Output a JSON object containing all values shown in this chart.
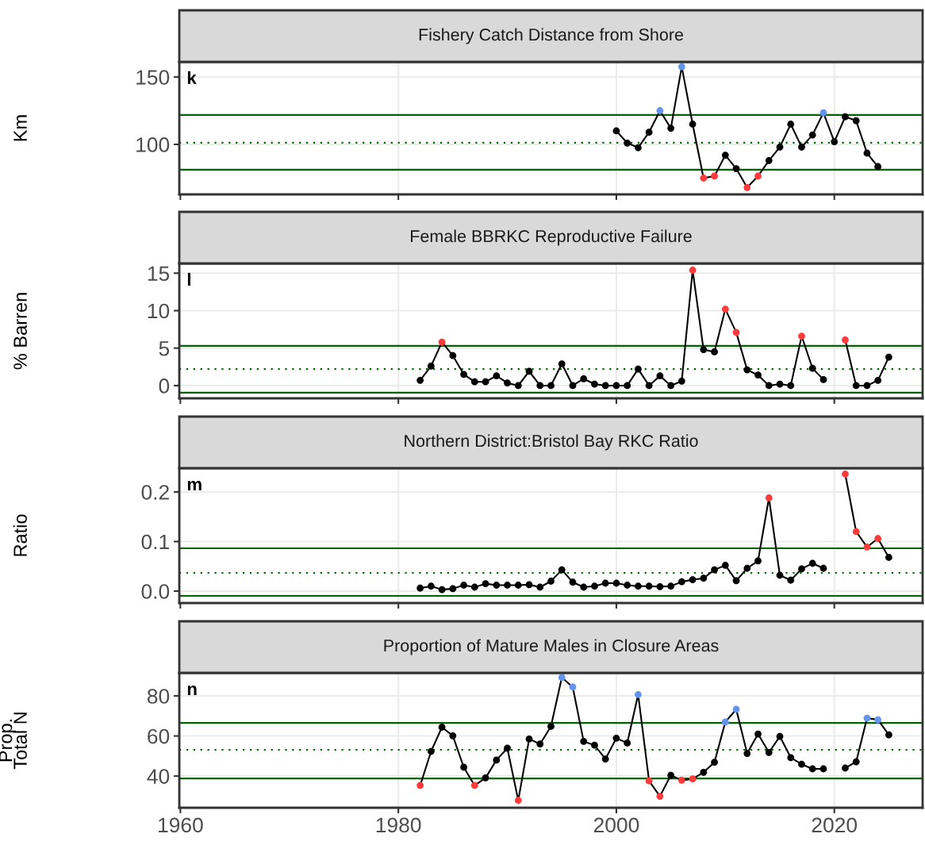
{
  "chart_data": [
    {
      "type": "line",
      "title": "Fishery Catch Distance from Shore",
      "ylabel": "Km",
      "annotations": [
        "k"
      ],
      "tick_labels": "y",
      "grid": true,
      "marker": "circle",
      "line_style": "solid",
      "xlim": [
        1959.9,
        2028.1
      ],
      "xticks": [
        1960,
        1980,
        2000,
        2020
      ],
      "ylim": [
        62.9,
        161.2
      ],
      "yticks": [
        100,
        150
      ],
      "x": [
        2000,
        2001,
        2002,
        2003,
        2004,
        2005,
        2006,
        2007,
        2008,
        2009,
        2010,
        2011,
        2012,
        2013,
        2014,
        2015,
        2016,
        2017,
        2018,
        2019,
        2020,
        2021,
        2022,
        2023,
        2024
      ],
      "series": [
        {
          "color": "#000000",
          "values": [
            110,
            101,
            97.6,
            109,
            125,
            112,
            157.6,
            115,
            75,
            76.5,
            92,
            82,
            68,
            76.5,
            88,
            98,
            115,
            98,
            107,
            123.5,
            102,
            120.5,
            117.6,
            93.5,
            83.5
          ],
          "colors": [
            "#000000",
            "#000000",
            "#000000",
            "#000000",
            "#6495ed",
            "#000000",
            "#6495ed",
            "#000000",
            "#ff3b3b",
            "#ff3b3b",
            "#000000",
            "#000000",
            "#ff3b3b",
            "#ff3b3b",
            "#000000",
            "#000000",
            "#000000",
            "#000000",
            "#000000",
            "#6495ed",
            "#000000",
            "#000000",
            "#000000",
            "#000000",
            "#000000"
          ]
        }
      ],
      "ref_lines": [
        {
          "axis": "y",
          "value": 121.8,
          "color": "#006400",
          "line_style": "solid"
        },
        {
          "axis": "y",
          "value": 101.2,
          "color": "#006400",
          "line_style": "dotted"
        },
        {
          "axis": "y",
          "value": 81.2,
          "color": "#006400",
          "line_style": "solid"
        }
      ]
    },
    {
      "type": "line",
      "title": "Female BBRKC Reproductive Failure",
      "ylabel": "% Barren",
      "annotations": [
        "l"
      ],
      "tick_labels": "y",
      "grid": true,
      "marker": "circle",
      "line_style": "solid",
      "xlim": [
        1959.9,
        2028.1
      ],
      "xticks": [
        1960,
        1980,
        2000,
        2020
      ],
      "ylim": [
        -1.7,
        16.3
      ],
      "yticks": [
        0,
        5,
        10,
        15
      ],
      "x": [
        1982,
        1983,
        1984,
        1985,
        1986,
        1987,
        1988,
        1989,
        1990,
        1991,
        1992,
        1993,
        1994,
        1995,
        1996,
        1997,
        1998,
        1999,
        2000,
        2001,
        2002,
        2003,
        2004,
        2005,
        2006,
        2007,
        2008,
        2009,
        2010,
        2011,
        2012,
        2013,
        2014,
        2015,
        2016,
        2017,
        2018,
        2019,
        2020,
        2021,
        2022,
        2023,
        2024,
        2025
      ],
      "series": [
        {
          "color": "#000000",
          "values": [
            0.7,
            2.6,
            5.8,
            4.0,
            1.5,
            0.5,
            0.5,
            1.3,
            0.35,
            0,
            1.9,
            0,
            0,
            2.9,
            0,
            0.9,
            0.2,
            0,
            0,
            0,
            2.2,
            0,
            1.3,
            0,
            0.6,
            15.4,
            4.8,
            4.5,
            10.2,
            7.1,
            2.1,
            1.4,
            0,
            0.2,
            0,
            6.6,
            2.3,
            0.8,
            null,
            6.1,
            0,
            0,
            0.7,
            3.8
          ],
          "colors": [
            "#000000",
            "#000000",
            "#ff3b3b",
            "#000000",
            "#000000",
            "#000000",
            "#000000",
            "#000000",
            "#000000",
            "#000000",
            "#000000",
            "#000000",
            "#000000",
            "#000000",
            "#000000",
            "#000000",
            "#000000",
            "#000000",
            "#000000",
            "#000000",
            "#000000",
            "#000000",
            "#000000",
            "#000000",
            "#000000",
            "#ff3b3b",
            "#000000",
            "#000000",
            "#ff3b3b",
            "#ff3b3b",
            "#000000",
            "#000000",
            "#000000",
            "#000000",
            "#000000",
            "#ff3b3b",
            "#000000",
            "#000000",
            "#000000",
            "#ff3b3b",
            "#000000",
            "#000000",
            "#000000",
            "#000000"
          ]
        }
      ],
      "ref_lines": [
        {
          "axis": "y",
          "value": 5.3,
          "color": "#006400",
          "line_style": "solid"
        },
        {
          "axis": "y",
          "value": 2.2,
          "color": "#006400",
          "line_style": "dotted"
        },
        {
          "axis": "y",
          "value": -0.95,
          "color": "#006400",
          "line_style": "solid"
        }
      ]
    },
    {
      "type": "line",
      "title": "Northern District:Bristol Bay RKC Ratio",
      "ylabel": "Ratio",
      "annotations": [
        "m"
      ],
      "tick_labels": "y",
      "grid": true,
      "marker": "circle",
      "line_style": "solid",
      "xlim": [
        1959.9,
        2028.1
      ],
      "xticks": [
        1960,
        1980,
        2000,
        2020
      ],
      "ylim": [
        -0.024,
        0.248
      ],
      "yticks": [
        {
          "value": 0,
          "label": "0.0"
        },
        0.1,
        0.2
      ],
      "x": [
        1982,
        1983,
        1984,
        1985,
        1986,
        1987,
        1988,
        1989,
        1990,
        1991,
        1992,
        1993,
        1994,
        1995,
        1996,
        1997,
        1998,
        1999,
        2000,
        2001,
        2002,
        2003,
        2004,
        2005,
        2006,
        2007,
        2008,
        2009,
        2010,
        2011,
        2012,
        2013,
        2014,
        2015,
        2016,
        2017,
        2018,
        2019,
        2020,
        2021,
        2022,
        2023,
        2024,
        2025
      ],
      "series": [
        {
          "color": "#000000",
          "values": [
            0.006,
            0.01,
            0.003,
            0.005,
            0.012,
            0.008,
            0.015,
            0.012,
            0.012,
            0.012,
            0.013,
            0.008,
            0.02,
            0.043,
            0.018,
            0.008,
            0.01,
            0.016,
            0.016,
            0.012,
            0.01,
            0.01,
            0.009,
            0.01,
            0.019,
            0.023,
            0.026,
            0.043,
            0.052,
            0.021,
            0.046,
            0.061,
            0.188,
            0.032,
            0.022,
            0.045,
            0.056,
            0.046,
            null,
            0.236,
            0.12,
            0.089,
            0.106,
            0.068
          ],
          "colors": [
            "#000000",
            "#000000",
            "#000000",
            "#000000",
            "#000000",
            "#000000",
            "#000000",
            "#000000",
            "#000000",
            "#000000",
            "#000000",
            "#000000",
            "#000000",
            "#000000",
            "#000000",
            "#000000",
            "#000000",
            "#000000",
            "#000000",
            "#000000",
            "#000000",
            "#000000",
            "#000000",
            "#000000",
            "#000000",
            "#000000",
            "#000000",
            "#000000",
            "#000000",
            "#000000",
            "#000000",
            "#000000",
            "#ff3b3b",
            "#000000",
            "#000000",
            "#000000",
            "#000000",
            "#000000",
            "#000000",
            "#ff3b3b",
            "#ff3b3b",
            "#ff3b3b",
            "#ff3b3b",
            "#000000"
          ]
        }
      ],
      "ref_lines": [
        {
          "axis": "y",
          "value": 0.0864,
          "color": "#006400",
          "line_style": "solid"
        },
        {
          "axis": "y",
          "value": 0.0368,
          "color": "#006400",
          "line_style": "dotted"
        },
        {
          "axis": "y",
          "value": -0.0096,
          "color": "#006400",
          "line_style": "solid"
        }
      ]
    },
    {
      "type": "line",
      "title": "Proportion of Mature Males in Closure Areas",
      "ylabel": "Prop.\nTotal N",
      "annotations": [
        "n"
      ],
      "grid": true,
      "marker": "circle",
      "line_style": "solid",
      "xlim": [
        1959.9,
        2028.1
      ],
      "xticks": [
        1960,
        1980,
        2000,
        2020
      ],
      "ylim": [
        24.2,
        91.5
      ],
      "yticks": [
        40,
        60,
        80
      ],
      "x": [
        1982,
        1983,
        1984,
        1985,
        1986,
        1987,
        1988,
        1989,
        1990,
        1991,
        1992,
        1993,
        1994,
        1995,
        1996,
        1997,
        1998,
        1999,
        2000,
        2001,
        2002,
        2003,
        2004,
        2005,
        2006,
        2007,
        2008,
        2009,
        2010,
        2011,
        2012,
        2013,
        2014,
        2015,
        2016,
        2017,
        2018,
        2019,
        2020,
        2021,
        2022,
        2023,
        2024,
        2025
      ],
      "series": [
        {
          "color": "#000000",
          "values": [
            35.3,
            52.3,
            64.4,
            60.1,
            44.4,
            35.3,
            39.1,
            48.0,
            53.9,
            27.9,
            58.5,
            56.0,
            64.8,
            89.2,
            84.4,
            57.3,
            55.4,
            48.5,
            58.9,
            56.5,
            80.7,
            37.6,
            29.9,
            40.4,
            37.9,
            38.6,
            41.9,
            46.9,
            67.0,
            73.3,
            51.3,
            61.0,
            51.8,
            59.8,
            49.2,
            45.9,
            43.6,
            43.6,
            null,
            44.0,
            47.1,
            68.9,
            68.1,
            60.6
          ],
          "colors": [
            "#ff3b3b",
            "#000000",
            "#000000",
            "#000000",
            "#000000",
            "#ff3b3b",
            "#000000",
            "#000000",
            "#000000",
            "#ff3b3b",
            "#000000",
            "#000000",
            "#000000",
            "#6495ed",
            "#6495ed",
            "#000000",
            "#000000",
            "#000000",
            "#000000",
            "#000000",
            "#6495ed",
            "#ff3b3b",
            "#ff3b3b",
            "#000000",
            "#ff3b3b",
            "#ff3b3b",
            "#000000",
            "#000000",
            "#6495ed",
            "#6495ed",
            "#000000",
            "#000000",
            "#000000",
            "#000000",
            "#000000",
            "#000000",
            "#000000",
            "#000000",
            "#000000",
            "#000000",
            "#000000",
            "#6495ed",
            "#6495ed",
            "#000000"
          ]
        }
      ],
      "ref_lines": [
        {
          "axis": "y",
          "value": 66.5,
          "color": "#006400",
          "line_style": "solid"
        },
        {
          "axis": "y",
          "value": 53.1,
          "color": "#006400",
          "line_style": "dotted"
        },
        {
          "axis": "y",
          "value": 38.8,
          "color": "#006400",
          "line_style": "solid"
        }
      ]
    }
  ]
}
